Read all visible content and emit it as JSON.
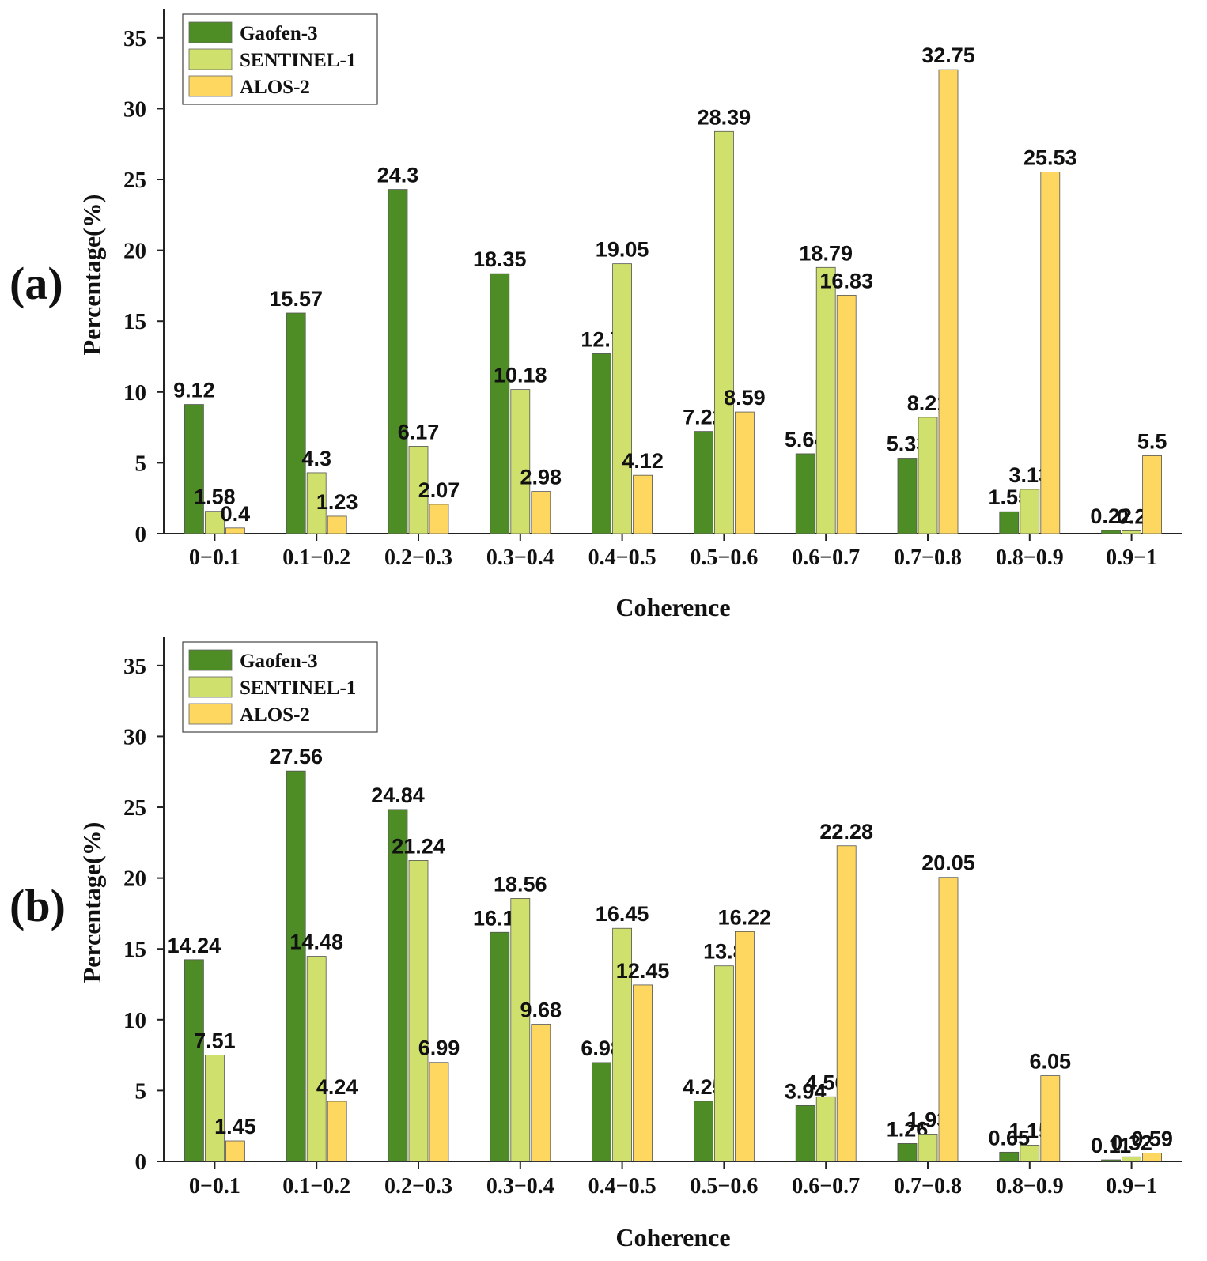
{
  "colors": {
    "Gaofen-3": "#4e8c25",
    "SENTINEL-1": "#cfe06c",
    "ALOS-2": "#fdd760"
  },
  "chart_data": [
    {
      "type": "bar",
      "panel_label": "(a)",
      "xlabel": "Coherence",
      "ylabel": "Percentage(%)",
      "ylim": [
        0,
        37
      ],
      "yticks": [
        0,
        5,
        10,
        15,
        20,
        25,
        30,
        35
      ],
      "legend_position": "top-left",
      "categories": [
        "0−0.1",
        "0.1−0.2",
        "0.2−0.3",
        "0.3−0.4",
        "0.4−0.5",
        "0.5−0.6",
        "0.6−0.7",
        "0.7−0.8",
        "0.8−0.9",
        "0.9−1"
      ],
      "series": [
        {
          "name": "Gaofen-3",
          "values": [
            9.12,
            15.57,
            24.3,
            18.35,
            12.7,
            7.22,
            5.64,
            5.33,
            1.55,
            0.22
          ]
        },
        {
          "name": "SENTINEL-1",
          "values": [
            1.58,
            4.3,
            6.17,
            10.18,
            19.05,
            28.39,
            18.79,
            8.21,
            3.13,
            0.2
          ]
        },
        {
          "name": "ALOS-2",
          "values": [
            0.4,
            1.23,
            2.07,
            2.98,
            4.12,
            8.59,
            16.83,
            32.75,
            25.53,
            5.5
          ]
        }
      ]
    },
    {
      "type": "bar",
      "panel_label": "(b)",
      "xlabel": "Coherence",
      "ylabel": "Percentage(%)",
      "ylim": [
        0,
        37
      ],
      "yticks": [
        0,
        5,
        10,
        15,
        20,
        25,
        30,
        35
      ],
      "legend_position": "top-left",
      "categories": [
        "0−0.1",
        "0.1−0.2",
        "0.2−0.3",
        "0.3−0.4",
        "0.4−0.5",
        "0.5−0.6",
        "0.6−0.7",
        "0.7−0.8",
        "0.8−0.9",
        "0.9−1"
      ],
      "series": [
        {
          "name": "Gaofen-3",
          "values": [
            14.24,
            27.56,
            24.84,
            16.17,
            6.98,
            4.25,
            3.94,
            1.26,
            0.65,
            0.11
          ]
        },
        {
          "name": "SENTINEL-1",
          "values": [
            7.51,
            14.48,
            21.24,
            18.56,
            16.45,
            13.8,
            4.56,
            1.93,
            1.15,
            0.32
          ]
        },
        {
          "name": "ALOS-2",
          "values": [
            1.45,
            4.24,
            6.99,
            9.68,
            12.45,
            16.22,
            22.28,
            20.05,
            6.05,
            0.59
          ]
        }
      ]
    }
  ]
}
